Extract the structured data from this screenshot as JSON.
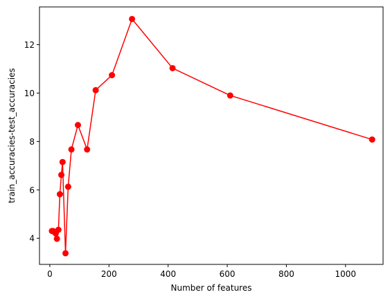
{
  "chart_data": {
    "type": "line",
    "title": "",
    "xlabel": "Number of features",
    "ylabel": "train_accuracies-test_accuracies",
    "xlim": [
      -35,
      1127
    ],
    "ylim": [
      2.92,
      13.56
    ],
    "xticks": [
      0,
      200,
      400,
      600,
      800,
      1000
    ],
    "yticks": [
      4,
      6,
      8,
      10,
      12
    ],
    "grid": false,
    "legend": "none",
    "colors": {
      "line": "#ff0000",
      "marker": "#ff0000",
      "axes": "#000000",
      "background": "#ffffff"
    },
    "series": [
      {
        "marker": "circle",
        "x": [
          7,
          11,
          16,
          20,
          24,
          29,
          34,
          39,
          43,
          53,
          62,
          73,
          95,
          126,
          155,
          210,
          278,
          415,
          610,
          1090
        ],
        "y": [
          4.3,
          4.3,
          4.25,
          4.2,
          3.98,
          4.35,
          5.82,
          6.62,
          7.15,
          3.38,
          6.13,
          7.67,
          8.68,
          7.67,
          10.12,
          10.74,
          13.06,
          11.03,
          9.9,
          8.08
        ]
      }
    ]
  }
}
